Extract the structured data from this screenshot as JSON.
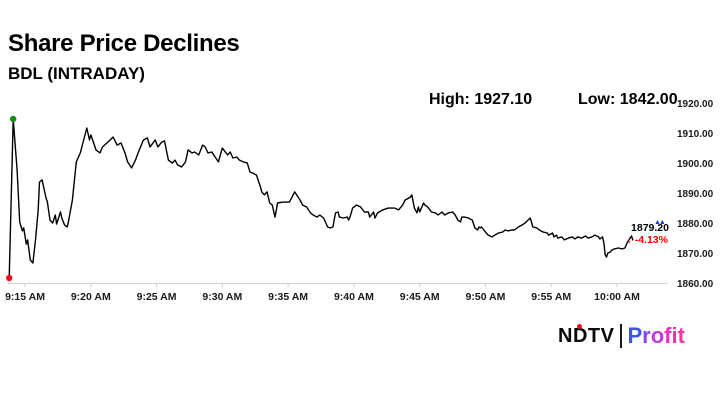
{
  "header": {
    "title": "Share Price Declines",
    "subtitle": "BDL (INTRADAY)"
  },
  "stats": {
    "high_label": "High: 1927.10",
    "low_label": "Low: 1842.00"
  },
  "last_quote": {
    "price": "1879.20",
    "arrow": "↓",
    "change_pct": "-4.13%",
    "blue_marker_glyph": "▲▲"
  },
  "colors": {
    "line": "#000000",
    "axis": "#cfcfcf",
    "high_dot": "#168a16",
    "low_dot": "#e8131d",
    "change_red": "#fe0000",
    "blue_marker": "#1f3bd3",
    "ndtv_dot_red": "#e8131d"
  },
  "logo": {
    "ndtv_text": "NDTV",
    "profit_text": "Profit",
    "profit_letter_colors": [
      "#3c55f0",
      "#8447ee",
      "#c438e0",
      "#ef2fc0",
      "#fb2fae",
      "#ff35a4"
    ]
  },
  "chart_data": {
    "type": "line",
    "title": "BDL intraday share price",
    "x_unit": "minutes since 9:15 AM",
    "x_tick_labels": [
      "9:15 AM",
      "9:20 AM",
      "9:25 AM",
      "9:30 AM",
      "9:35 AM",
      "9:40 AM",
      "9:45 AM",
      "9:50 AM",
      "9:55 AM",
      "10:00 AM"
    ],
    "x_tick_minutes": [
      0,
      5,
      10,
      15,
      20,
      25,
      30,
      35,
      40,
      45
    ],
    "y_tick_labels": [
      "1920.00",
      "1910.00",
      "1900.00",
      "1890.00",
      "1880.00",
      "1870.00",
      "1860.00"
    ],
    "y_tick_values": [
      1920,
      1910,
      1900,
      1890,
      1880,
      1870,
      1860
    ],
    "ylim": [
      1860,
      1920
    ],
    "grid": false,
    "legend": false,
    "session_high_shown": 1927.1,
    "session_low_shown": 1842.0,
    "last_price": 1879.2,
    "change_pct": -4.13,
    "markers": [
      {
        "name": "high-start-dot",
        "t": -0.9,
        "p": 1915.0,
        "color": "#168a16"
      },
      {
        "name": "low-start-dot",
        "t": -1.2,
        "p": 1862.0,
        "color": "#e8131d"
      }
    ],
    "series": [
      {
        "name": "BDL",
        "color": "#000000",
        "points": [
          [
            -1.2,
            1862.0
          ],
          [
            -0.9,
            1915.0
          ],
          [
            -0.6,
            1898.0
          ],
          [
            -0.4,
            1880.7
          ],
          [
            -0.2,
            1877.7
          ],
          [
            -0.1,
            1878.7
          ],
          [
            0.1,
            1873.3
          ],
          [
            0.2,
            1874.7
          ],
          [
            0.4,
            1868.0
          ],
          [
            0.6,
            1867.0
          ],
          [
            0.8,
            1874.7
          ],
          [
            1.0,
            1884.7
          ],
          [
            1.1,
            1894.0
          ],
          [
            1.3,
            1894.7
          ],
          [
            1.4,
            1892.7
          ],
          [
            1.6,
            1888.7
          ],
          [
            1.7,
            1887.3
          ],
          [
            1.9,
            1881.3
          ],
          [
            2.1,
            1880.3
          ],
          [
            2.3,
            1883.0
          ],
          [
            2.4,
            1880.0
          ],
          [
            2.7,
            1884.0
          ],
          [
            2.8,
            1882.0
          ],
          [
            3.0,
            1879.7
          ],
          [
            3.2,
            1879.0
          ],
          [
            3.3,
            1880.7
          ],
          [
            3.6,
            1888.0
          ],
          [
            3.9,
            1900.7
          ],
          [
            4.2,
            1903.7
          ],
          [
            4.4,
            1907.0
          ],
          [
            4.7,
            1912.0
          ],
          [
            4.9,
            1908.0
          ],
          [
            5.0,
            1909.7
          ],
          [
            5.2,
            1907.3
          ],
          [
            5.4,
            1904.7
          ],
          [
            5.7,
            1903.7
          ],
          [
            5.9,
            1905.7
          ],
          [
            6.3,
            1907.3
          ],
          [
            6.7,
            1909.0
          ],
          [
            7.0,
            1906.3
          ],
          [
            7.3,
            1907.0
          ],
          [
            7.6,
            1903.7
          ],
          [
            7.8,
            1900.7
          ],
          [
            8.1,
            1898.7
          ],
          [
            8.4,
            1901.3
          ],
          [
            8.6,
            1903.7
          ],
          [
            9.0,
            1908.0
          ],
          [
            9.3,
            1908.7
          ],
          [
            9.5,
            1905.7
          ],
          [
            9.9,
            1908.0
          ],
          [
            10.1,
            1905.7
          ],
          [
            10.4,
            1907.3
          ],
          [
            10.6,
            1907.7
          ],
          [
            10.9,
            1901.3
          ],
          [
            11.2,
            1900.3
          ],
          [
            11.4,
            1901.3
          ],
          [
            11.6,
            1899.7
          ],
          [
            11.9,
            1899.0
          ],
          [
            12.2,
            1900.7
          ],
          [
            12.4,
            1904.7
          ],
          [
            12.7,
            1903.7
          ],
          [
            12.9,
            1904.0
          ],
          [
            13.2,
            1903.0
          ],
          [
            13.5,
            1906.3
          ],
          [
            13.7,
            1905.7
          ],
          [
            13.9,
            1903.7
          ],
          [
            14.2,
            1904.0
          ],
          [
            14.7,
            1900.7
          ],
          [
            15.0,
            1905.3
          ],
          [
            15.4,
            1903.0
          ],
          [
            15.6,
            1904.0
          ],
          [
            15.8,
            1902.0
          ],
          [
            16.1,
            1902.3
          ],
          [
            16.3,
            1901.3
          ],
          [
            16.6,
            1900.7
          ],
          [
            16.9,
            1900.3
          ],
          [
            17.1,
            1897.3
          ],
          [
            17.3,
            1897.0
          ],
          [
            17.6,
            1896.3
          ],
          [
            17.9,
            1892.3
          ],
          [
            18.0,
            1890.7
          ],
          [
            18.2,
            1889.7
          ],
          [
            18.4,
            1890.7
          ],
          [
            18.6,
            1887.0
          ],
          [
            18.8,
            1886.3
          ],
          [
            19.0,
            1882.3
          ],
          [
            19.2,
            1887.0
          ],
          [
            19.6,
            1887.3
          ],
          [
            20.1,
            1887.3
          ],
          [
            20.5,
            1890.7
          ],
          [
            20.9,
            1888.0
          ],
          [
            21.1,
            1886.3
          ],
          [
            21.4,
            1885.7
          ],
          [
            21.7,
            1883.7
          ],
          [
            21.9,
            1883.0
          ],
          [
            22.2,
            1882.3
          ],
          [
            22.4,
            1883.0
          ],
          [
            22.7,
            1882.0
          ],
          [
            23.0,
            1879.0
          ],
          [
            23.2,
            1878.7
          ],
          [
            23.4,
            1879.0
          ],
          [
            23.6,
            1883.7
          ],
          [
            23.8,
            1884.0
          ],
          [
            23.9,
            1882.3
          ],
          [
            24.2,
            1882.0
          ],
          [
            24.5,
            1882.3
          ],
          [
            24.6,
            1881.3
          ],
          [
            24.7,
            1882.3
          ],
          [
            24.9,
            1885.3
          ],
          [
            25.2,
            1886.3
          ],
          [
            25.5,
            1885.7
          ],
          [
            25.8,
            1884.0
          ],
          [
            26.1,
            1884.0
          ],
          [
            26.2,
            1882.3
          ],
          [
            26.5,
            1884.0
          ],
          [
            26.6,
            1882.0
          ],
          [
            26.8,
            1883.7
          ],
          [
            27.2,
            1884.7
          ],
          [
            27.6,
            1885.3
          ],
          [
            28.1,
            1885.3
          ],
          [
            28.4,
            1884.7
          ],
          [
            28.7,
            1886.3
          ],
          [
            28.9,
            1888.0
          ],
          [
            29.3,
            1889.0
          ],
          [
            29.4,
            1889.7
          ],
          [
            29.6,
            1885.3
          ],
          [
            29.8,
            1883.7
          ],
          [
            29.9,
            1885.7
          ],
          [
            30.0,
            1884.0
          ],
          [
            30.3,
            1887.0
          ],
          [
            30.4,
            1886.3
          ],
          [
            30.6,
            1885.7
          ],
          [
            30.9,
            1884.0
          ],
          [
            31.2,
            1883.7
          ],
          [
            31.4,
            1883.0
          ],
          [
            31.7,
            1884.0
          ],
          [
            31.9,
            1883.0
          ],
          [
            32.2,
            1883.7
          ],
          [
            32.5,
            1884.0
          ],
          [
            32.7,
            1883.0
          ],
          [
            32.9,
            1881.3
          ],
          [
            33.1,
            1880.7
          ],
          [
            33.2,
            1882.3
          ],
          [
            33.4,
            1882.3
          ],
          [
            33.7,
            1882.0
          ],
          [
            34.0,
            1881.3
          ],
          [
            34.2,
            1878.7
          ],
          [
            34.4,
            1878.0
          ],
          [
            34.5,
            1879.0
          ],
          [
            34.6,
            1878.7
          ],
          [
            34.7,
            1879.0
          ],
          [
            35.0,
            1877.3
          ],
          [
            35.2,
            1876.3
          ],
          [
            35.5,
            1875.7
          ],
          [
            35.7,
            1876.3
          ],
          [
            36.0,
            1877.0
          ],
          [
            36.3,
            1877.3
          ],
          [
            36.5,
            1878.0
          ],
          [
            36.7,
            1877.7
          ],
          [
            37.0,
            1878.0
          ],
          [
            37.2,
            1878.0
          ],
          [
            37.5,
            1879.0
          ],
          [
            37.8,
            1879.7
          ],
          [
            38.0,
            1880.3
          ],
          [
            38.4,
            1882.0
          ],
          [
            38.5,
            1880.7
          ],
          [
            38.6,
            1879.0
          ],
          [
            38.9,
            1878.7
          ],
          [
            39.1,
            1878.0
          ],
          [
            39.4,
            1877.3
          ],
          [
            39.7,
            1877.0
          ],
          [
            39.8,
            1876.3
          ],
          [
            40.1,
            1877.0
          ],
          [
            40.2,
            1875.7
          ],
          [
            40.4,
            1876.3
          ],
          [
            40.5,
            1875.3
          ],
          [
            40.8,
            1875.7
          ],
          [
            41.0,
            1874.7
          ],
          [
            41.3,
            1875.3
          ],
          [
            41.6,
            1875.7
          ],
          [
            41.8,
            1875.0
          ],
          [
            42.0,
            1875.7
          ],
          [
            42.3,
            1875.3
          ],
          [
            42.6,
            1876.0
          ],
          [
            42.8,
            1875.3
          ],
          [
            43.1,
            1875.7
          ],
          [
            43.3,
            1876.3
          ],
          [
            43.6,
            1875.7
          ],
          [
            43.7,
            1875.0
          ],
          [
            43.9,
            1875.7
          ],
          [
            44.0,
            1873.7
          ],
          [
            44.1,
            1869.7
          ],
          [
            44.2,
            1869.0
          ],
          [
            44.3,
            1870.3
          ],
          [
            44.5,
            1870.7
          ],
          [
            44.6,
            1871.3
          ],
          [
            44.8,
            1871.7
          ],
          [
            45.1,
            1872.0
          ],
          [
            45.4,
            1871.7
          ],
          [
            45.6,
            1872.0
          ],
          [
            45.8,
            1874.0
          ],
          [
            46.0,
            1875.3
          ],
          [
            46.1,
            1876.0
          ],
          [
            46.2,
            1874.7
          ]
        ]
      }
    ]
  }
}
